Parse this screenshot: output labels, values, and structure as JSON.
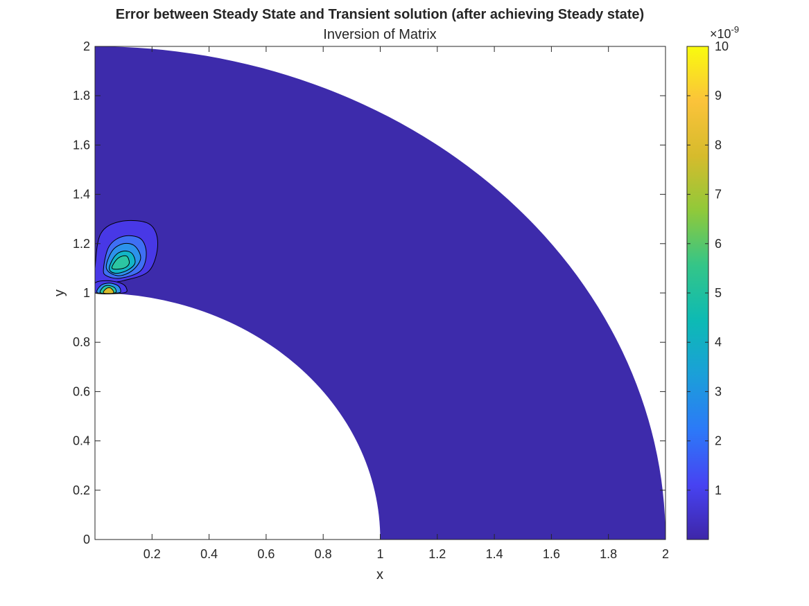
{
  "chart_data": {
    "type": "contour",
    "title": "Error between Steady State and Transient solution (after achieving Steady state)",
    "subtitle": "Inversion of Matrix",
    "xlabel": "x",
    "ylabel": "y",
    "xlim": [
      0,
      2
    ],
    "ylim": [
      0,
      2
    ],
    "x_ticks": [
      0.2,
      0.4,
      0.6,
      0.8,
      1,
      1.2,
      1.4,
      1.6,
      1.8,
      2
    ],
    "x_tick_labels": [
      "0.2",
      "0.4",
      "0.6",
      "0.8",
      "1",
      "1.2",
      "1.4",
      "1.6",
      "1.8",
      "2"
    ],
    "y_ticks": [
      0,
      0.2,
      0.4,
      0.6,
      0.8,
      1,
      1.2,
      1.4,
      1.6,
      1.8,
      2
    ],
    "y_tick_labels": [
      "0",
      "0.2",
      "0.4",
      "0.6",
      "0.8",
      "1",
      "1.2",
      "1.4",
      "1.6",
      "1.8",
      "2"
    ],
    "domain": {
      "shape": "quarter annulus",
      "r_inner": 1,
      "r_outer": 2
    },
    "background_level_color": "#3d2bab",
    "colormap": "parula",
    "colormap_stops": [
      "#3e26a8",
      "#4743f2",
      "#2c79f8",
      "#1b9fd9",
      "#0dbab4",
      "#34c588",
      "#90c93a",
      "#d6bb2c",
      "#fbc33a",
      "#f9fb0e"
    ],
    "colorbar": {
      "range": [
        0,
        10
      ],
      "ticks": [
        1,
        2,
        3,
        4,
        5,
        6,
        7,
        8,
        9,
        10
      ],
      "tick_labels": [
        "1",
        "2",
        "3",
        "4",
        "5",
        "6",
        "7",
        "8",
        "9",
        "10"
      ],
      "multiplier_base": "×10",
      "multiplier_exponent": "-9"
    },
    "features": [
      {
        "center": [
          0.07,
          1.13
        ],
        "rings": [
          {
            "level": 1,
            "color": "#4838e6",
            "points": [
              [
                0.0,
                1.1
              ],
              [
                0.02,
                1.24
              ],
              [
                0.09,
                1.29
              ],
              [
                0.19,
                1.28
              ],
              [
                0.22,
                1.2
              ],
              [
                0.19,
                1.09
              ],
              [
                0.1,
                1.05
              ],
              [
                0.04,
                1.04
              ],
              [
                0.0,
                1.02
              ]
            ]
          },
          {
            "level": 2,
            "color": "#3f6ff4",
            "points": [
              [
                0.03,
                1.1
              ],
              [
                0.05,
                1.19
              ],
              [
                0.1,
                1.23
              ],
              [
                0.16,
                1.22
              ],
              [
                0.18,
                1.16
              ],
              [
                0.16,
                1.09
              ],
              [
                0.09,
                1.06
              ],
              [
                0.04,
                1.07
              ]
            ]
          },
          {
            "level": 3,
            "color": "#2c92eb",
            "points": [
              [
                0.04,
                1.1
              ],
              [
                0.06,
                1.17
              ],
              [
                0.1,
                1.2
              ],
              [
                0.14,
                1.19
              ],
              [
                0.16,
                1.14
              ],
              [
                0.13,
                1.09
              ],
              [
                0.08,
                1.07
              ]
            ]
          },
          {
            "level": 4,
            "color": "#12b5c6",
            "points": [
              [
                0.05,
                1.1
              ],
              [
                0.07,
                1.15
              ],
              [
                0.1,
                1.17
              ],
              [
                0.13,
                1.16
              ],
              [
                0.14,
                1.12
              ],
              [
                0.11,
                1.09
              ],
              [
                0.07,
                1.08
              ]
            ]
          },
          {
            "level": 5,
            "color": "#2cc6a2",
            "points": [
              [
                0.06,
                1.1
              ],
              [
                0.08,
                1.14
              ],
              [
                0.11,
                1.15
              ],
              [
                0.12,
                1.12
              ],
              [
                0.1,
                1.1
              ]
            ]
          }
        ]
      },
      {
        "center": [
          0.04,
          1.0
        ],
        "rings": [
          {
            "level": 1,
            "color": "#4838e6",
            "points": [
              [
                0.0,
                1.0
              ],
              [
                0.0,
                1.04
              ],
              [
                0.04,
                1.05
              ],
              [
                0.09,
                1.04
              ],
              [
                0.11,
                1.02
              ],
              [
                0.1,
                1.0
              ]
            ]
          },
          {
            "level": 3,
            "color": "#2c92eb",
            "points": [
              [
                0.01,
                1.0
              ],
              [
                0.02,
                1.03
              ],
              [
                0.05,
                1.04
              ],
              [
                0.08,
                1.03
              ],
              [
                0.09,
                1.01
              ],
              [
                0.08,
                1.0
              ]
            ]
          },
          {
            "level": 5,
            "color": "#2cc6a2",
            "points": [
              [
                0.02,
                1.0
              ],
              [
                0.03,
                1.025
              ],
              [
                0.05,
                1.03
              ],
              [
                0.07,
                1.02
              ],
              [
                0.07,
                1.0
              ]
            ]
          },
          {
            "level": 8,
            "color": "#d6bb2c",
            "points": [
              [
                0.03,
                1.0
              ],
              [
                0.04,
                1.018
              ],
              [
                0.055,
                1.02
              ],
              [
                0.065,
                1.0
              ]
            ]
          }
        ]
      }
    ]
  }
}
